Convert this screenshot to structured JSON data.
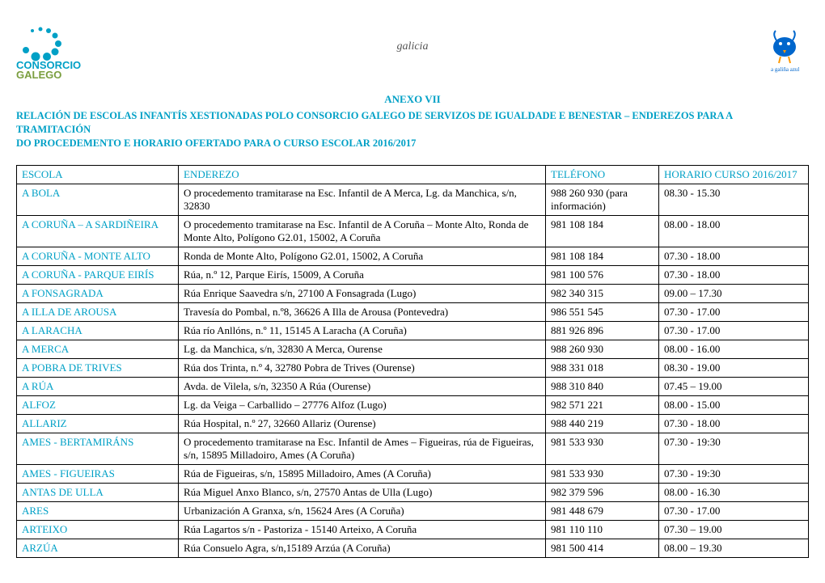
{
  "header": {
    "galicia": "galicia",
    "anexo": "ANEXO VII",
    "subtitle_line1": "RELACIÓN DE ESCOLAS INFANTÍS XESTIONADAS POLO CONSORCIO GALEGO DE SERVIZOS DE IGUALDADE E BENESTAR – ENDEREZOS PARA A TRAMITACIÓN",
    "subtitle_line2": "DO PROCEDEMENTO E HORARIO OFERTADO PARA O CURSO ESCOLAR 2016/2017"
  },
  "logo_left": {
    "text1": "CONSORCIO",
    "text2": "GALEGO",
    "text3": "de Servizos de Igualdade e Benestar",
    "color_dots": "#00a0c6",
    "color_text1": "#00a0c6",
    "color_text2": "#7a9e3f"
  },
  "logo_right": {
    "alt": "a galiña azul",
    "color": "#0066cc"
  },
  "table": {
    "headers": {
      "escola": "ESCOLA",
      "enderezo": "ENDEREZO",
      "telefono": "TELÉFONO",
      "horario": "HORARIO CURSO 2016/2017"
    },
    "rows": [
      {
        "escola": "A BOLA",
        "enderezo": "O procedemento tramitarase na Esc. Infantil de A Merca, Lg. da Manchica, s/n, 32830",
        "telefono": "988 260 930 (para información)",
        "horario": "08.30 - 15.30"
      },
      {
        "escola": "A CORUÑA – A SARDIÑEIRA",
        "enderezo": "O procedemento tramitarase na Esc. Infantil de A Coruña – Monte Alto, Ronda de Monte Alto, Polígono G2.01, 15002,  A Coruña",
        "telefono": "981 108 184",
        "horario": "08.00 - 18.00"
      },
      {
        "escola": "A CORUÑA - MONTE ALTO",
        "enderezo": "Ronda de Monte Alto, Polígono G2.01, 15002,  A Coruña",
        "telefono": "981 108 184",
        "horario": "07.30 - 18.00"
      },
      {
        "escola": "A CORUÑA - PARQUE EIRÍS",
        "enderezo": "Rúa, n.º 12, Parque Eirís, 15009,  A Coruña",
        "telefono": "981 100 576",
        "horario": "07.30 - 18.00"
      },
      {
        "escola": "A FONSAGRADA",
        "enderezo": "Rúa Enrique Saavedra s/n, 27100 A Fonsagrada (Lugo)",
        "telefono": "982 340 315",
        "horario": "09.00 – 17.30"
      },
      {
        "escola": "A ILLA DE AROUSA",
        "enderezo": "Travesía do Pombal, n.º8, 36626 A Illa de Arousa (Pontevedra)",
        "telefono": "986 551 545",
        "horario": "07.30 - 17.00"
      },
      {
        "escola": "A LARACHA",
        "enderezo": "Rúa río Anllóns, n.º 11, 15145  A Laracha (A Coruña)",
        "telefono": "881 926 896",
        "horario": "07.30 - 17.00"
      },
      {
        "escola": "A MERCA",
        "enderezo": "Lg. da Manchica, s/n, 32830  A Merca, Ourense",
        "telefono": "988 260 930",
        "horario": "08.00 - 16.00"
      },
      {
        "escola": "A POBRA DE TRIVES",
        "enderezo": "Rúa dos Trinta, n.º 4, 32780 Pobra de Trives (Ourense)",
        "telefono": "988 331 018",
        "horario": "08.30 - 19.00"
      },
      {
        "escola": "A RÚA",
        "enderezo": "Avda. de Vilela, s/n, 32350  A Rúa (Ourense)",
        "telefono": "988 310 840",
        "horario": "07.45 – 19.00"
      },
      {
        "escola": "ALFOZ",
        "enderezo": "Lg. da Veiga – Carballido – 27776 Alfoz (Lugo)",
        "telefono": "982 571 221",
        "horario": "08.00 - 15.00"
      },
      {
        "escola": "ALLARIZ",
        "enderezo": "Rúa Hospital, n.º 27, 32660 Allariz (Ourense)",
        "telefono": "988 440 219",
        "horario": "07.30 - 18.00"
      },
      {
        "escola": "AMES - BERTAMIRÁNS",
        "enderezo": "O procedemento tramitarase na Esc. Infantil de Ames – Figueiras, rúa de Figueiras, s/n, 15895 Milladoiro, Ames (A Coruña)",
        "telefono": "981 533 930",
        "horario": "07.30 - 19:30"
      },
      {
        "escola": "AMES - FIGUEIRAS",
        "enderezo": "Rúa de Figueiras, s/n, 15895 Milladoiro, Ames (A Coruña)",
        "telefono": "981 533 930",
        "horario": "07.30 - 19:30"
      },
      {
        "escola": "ANTAS DE ULLA",
        "enderezo": "Rúa Miguel Anxo Blanco, s/n, 27570 Antas de Ulla (Lugo)",
        "telefono": "982 379 596",
        "horario": "08.00 - 16.30"
      },
      {
        "escola": "ARES",
        "enderezo": "Urbanización A Granxa, s/n, 15624 Ares (A Coruña)",
        "telefono": "981 448 679",
        "horario": "07.30 - 17.00"
      },
      {
        "escola": "ARTEIXO",
        "enderezo": "Rúa Lagartos s/n  - Pastoriza - 15140 Arteixo, A Coruña",
        "telefono": "981 110 110",
        "horario": "07.30 – 19.00"
      },
      {
        "escola": "ARZÚA",
        "enderezo": "Rúa Consuelo Agra, s/n,15189 Arzúa (A Coruña)",
        "telefono": "981 500 414",
        "horario": "08.00 – 19.30"
      }
    ]
  }
}
